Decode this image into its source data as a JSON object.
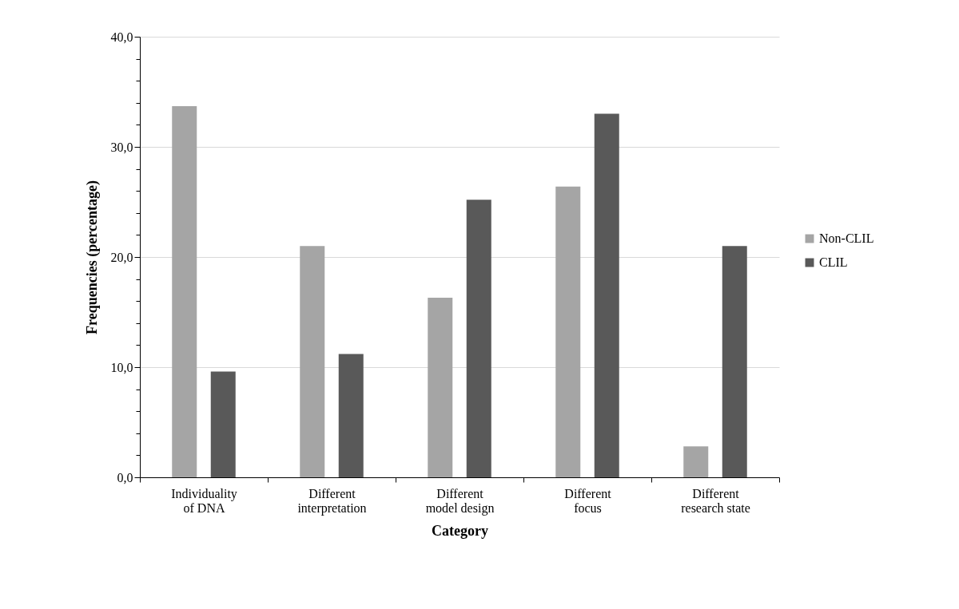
{
  "chart_data": {
    "type": "bar",
    "xlabel": "Category",
    "ylabel": "Frequencies  (percentage)",
    "categories": [
      "Individuality\nof DNA",
      "Different\ninterpretation",
      "Different\nmodel design",
      "Different\nfocus",
      "Different\nresearch state"
    ],
    "series": [
      {
        "name": "Non-CLIL",
        "color": "#a5a5a5",
        "values": [
          33.7,
          21.0,
          16.3,
          26.4,
          2.8
        ]
      },
      {
        "name": "CLIL",
        "color": "#595959",
        "values": [
          9.6,
          11.2,
          25.2,
          33.0,
          21.0
        ]
      }
    ],
    "ylim": [
      0,
      40
    ],
    "yticks": [
      {
        "value": 0,
        "label": "0,0"
      },
      {
        "value": 2,
        "label": null
      },
      {
        "value": 4,
        "label": null
      },
      {
        "value": 6,
        "label": null
      },
      {
        "value": 8,
        "label": null
      },
      {
        "value": 10,
        "label": "10,0"
      },
      {
        "value": 12,
        "label": null
      },
      {
        "value": 14,
        "label": null
      },
      {
        "value": 16,
        "label": null
      },
      {
        "value": 18,
        "label": null
      },
      {
        "value": 20,
        "label": "20,0"
      },
      {
        "value": 22,
        "label": null
      },
      {
        "value": 24,
        "label": null
      },
      {
        "value": 26,
        "label": null
      },
      {
        "value": 28,
        "label": null
      },
      {
        "value": 30,
        "label": "30,0"
      },
      {
        "value": 32,
        "label": null
      },
      {
        "value": 34,
        "label": null
      },
      {
        "value": 36,
        "label": null
      },
      {
        "value": 38,
        "label": null
      },
      {
        "value": 40,
        "label": "40,0"
      }
    ],
    "grid": "y",
    "legend": "right"
  }
}
